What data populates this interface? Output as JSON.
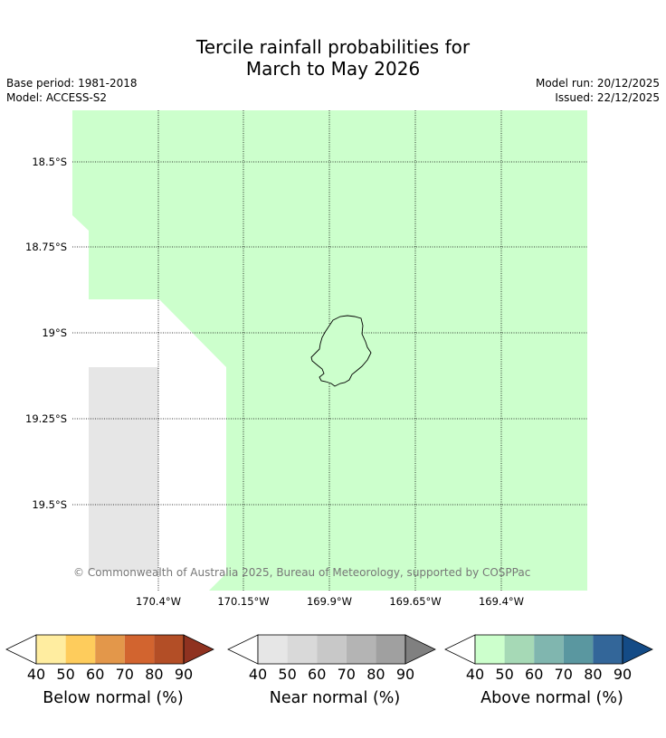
{
  "title": {
    "line1": "Tercile rainfall probabilities for",
    "line2": "March to May 2026"
  },
  "meta": {
    "base_period": "Base period: 1981-2018",
    "model": "Model: ACCESS-S2",
    "model_run": "Model run: 20/12/2025",
    "issued": "Issued: 22/12/2025"
  },
  "map": {
    "latitude_labels": [
      "18.5°S",
      "18.75°S",
      "19°S",
      "19.25°S",
      "19.5°S"
    ],
    "longitude_labels": [
      "170.4°W",
      "170.15°W",
      "169.9°W",
      "169.65°W",
      "169.4°W"
    ],
    "copyright": "© Commonwealth of Australia 2025, Bureau of Meteorology, supported by COSPPac",
    "colors": {
      "above_normal_40_50": "#ccffcc",
      "near_normal_40_50": "#e6e6e6",
      "background": "#ffffff",
      "gridline": "#000000"
    }
  },
  "legends": [
    {
      "title": "Below normal (%)",
      "ticks": [
        "40",
        "50",
        "60",
        "70",
        "80",
        "90"
      ],
      "colors": [
        "#ffeda0",
        "#fecc5c",
        "#e3974a",
        "#d2642f",
        "#b34e26",
        "#8f3220"
      ]
    },
    {
      "title": "Near normal (%)",
      "ticks": [
        "40",
        "50",
        "60",
        "70",
        "80",
        "90"
      ],
      "colors": [
        "#e6e6e6",
        "#d9d9d9",
        "#c8c8c8",
        "#b4b4b4",
        "#a0a0a0",
        "#808080"
      ]
    },
    {
      "title": "Above normal (%)",
      "ticks": [
        "40",
        "50",
        "60",
        "70",
        "80",
        "90"
      ],
      "colors": [
        "#ccffcc",
        "#a6d9b6",
        "#80b6af",
        "#5a97a0",
        "#336699",
        "#144b86"
      ]
    }
  ]
}
